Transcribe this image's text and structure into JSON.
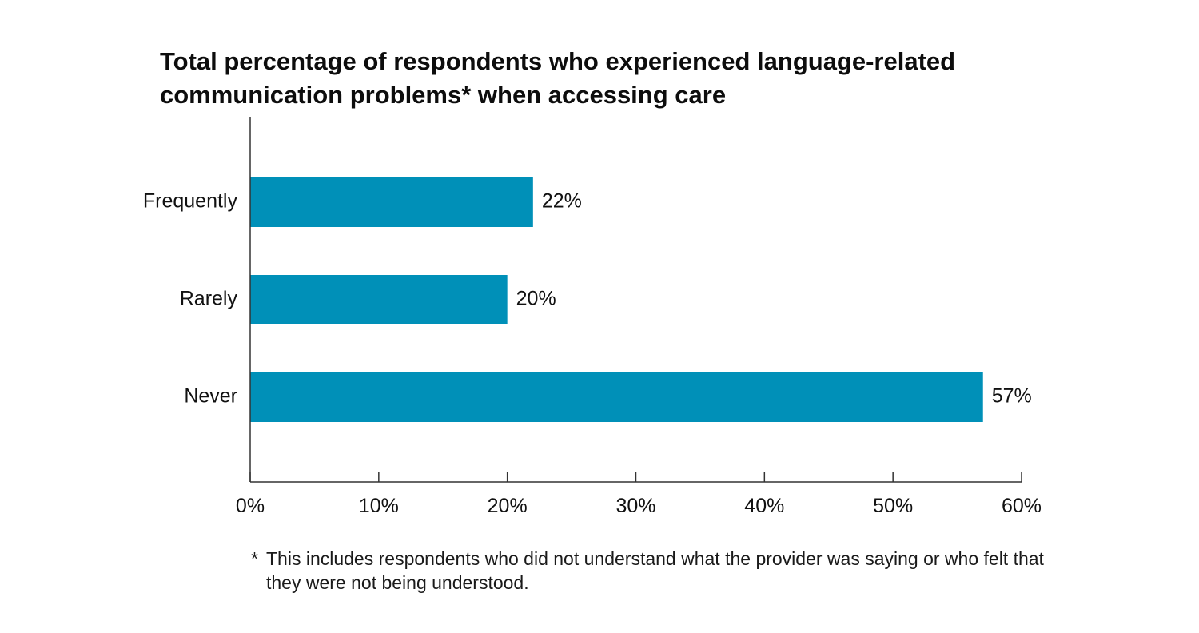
{
  "chart_data": {
    "type": "bar",
    "orientation": "horizontal",
    "title": "Total percentage of respondents who experienced language-related communication problems* when accessing care",
    "categories": [
      "Frequently",
      "Rarely",
      "Never"
    ],
    "values": [
      22,
      20,
      57
    ],
    "data_labels": [
      "22%",
      "20%",
      "57%"
    ],
    "xlim": [
      0,
      60
    ],
    "xticks": [
      0,
      10,
      20,
      30,
      40,
      50,
      60
    ],
    "xtick_labels": [
      "0%",
      "10%",
      "20%",
      "30%",
      "40%",
      "50%",
      "60%"
    ],
    "xlabel": "",
    "ylabel": "",
    "grid": false,
    "bar_color": "#0090b8"
  },
  "footnote": {
    "mark": "*",
    "text": "This includes respondents who did not understand what the provider was saying or who felt that they were not being understood."
  }
}
